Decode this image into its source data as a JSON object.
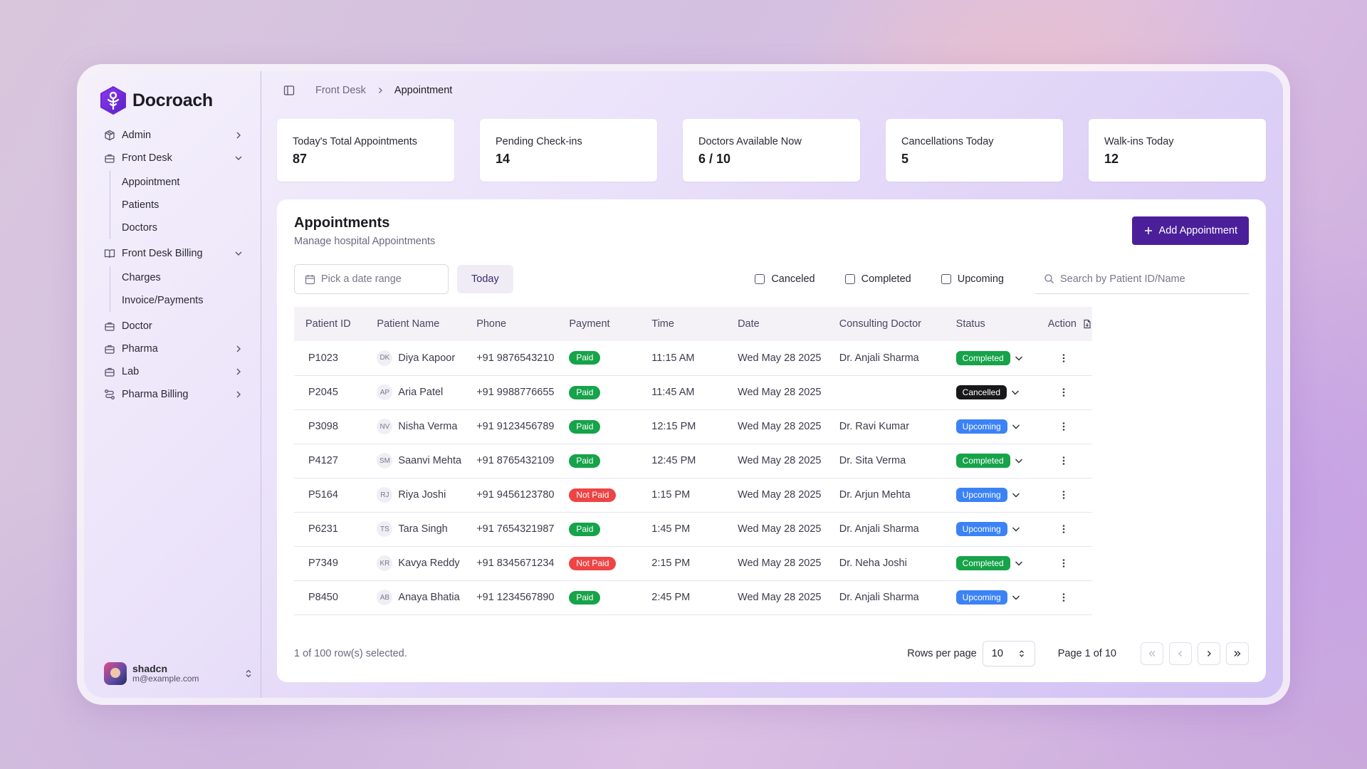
{
  "brand": {
    "name": "Docroach"
  },
  "sidebar": {
    "items": [
      {
        "label": "Admin",
        "icon": "package-icon"
      },
      {
        "label": "Front Desk",
        "icon": "briefcase-icon"
      },
      {
        "label": "Front Desk Billing",
        "icon": "book-open-icon"
      },
      {
        "label": "Doctor",
        "icon": "briefcase-icon"
      },
      {
        "label": "Pharma",
        "icon": "briefcase-icon"
      },
      {
        "label": "Lab",
        "icon": "briefcase-icon"
      },
      {
        "label": "Pharma Billing",
        "icon": "route-icon"
      }
    ],
    "front_desk_sub": [
      "Appointment",
      "Patients",
      "Doctors"
    ],
    "billing_sub": [
      "Charges",
      "Invoice/Payments"
    ]
  },
  "user": {
    "name": "shadcn",
    "email": "m@example.com"
  },
  "breadcrumb": {
    "parent": "Front Desk",
    "current": "Appointment"
  },
  "stats": [
    {
      "label": "Today's Total Appointments",
      "value": "87"
    },
    {
      "label": "Pending Check-ins",
      "value": "14"
    },
    {
      "label": "Doctors Available Now",
      "value": "6 / 10"
    },
    {
      "label": "Cancellations Today",
      "value": "5"
    },
    {
      "label": "Walk-ins Today",
      "value": "12"
    }
  ],
  "appointments": {
    "title": "Appointments",
    "subtitle": "Manage hospital Appointments",
    "add_label": "Add Appointment",
    "date_placeholder": "Pick a date range",
    "today_label": "Today",
    "filters": [
      "Canceled",
      "Completed",
      "Upcoming"
    ],
    "search_placeholder": "Search by Patient ID/Name",
    "columns": [
      "Patient ID",
      "Patient Name",
      "Phone",
      "Payment",
      "Time",
      "Date",
      "Consulting Doctor",
      "Status",
      "Action"
    ],
    "rows": [
      {
        "id": "P1023",
        "initials": "DK",
        "name": "Diya Kapoor",
        "phone": "+91 9876543210",
        "payment": "Paid",
        "time": "11:15 AM",
        "date": "Wed May 28 2025",
        "doctor": "Dr. Anjali Sharma",
        "status": "Completed"
      },
      {
        "id": "P2045",
        "initials": "AP",
        "name": "Aria Patel",
        "phone": "+91 9988776655",
        "payment": "Paid",
        "time": "11:45 AM",
        "date": "Wed May 28 2025",
        "doctor": "",
        "status": "Cancelled"
      },
      {
        "id": "P3098",
        "initials": "NV",
        "name": "Nisha Verma",
        "phone": "+91 9123456789",
        "payment": "Paid",
        "time": "12:15 PM",
        "date": "Wed May 28 2025",
        "doctor": "Dr. Ravi Kumar",
        "status": "Upcoming"
      },
      {
        "id": "P4127",
        "initials": "SM",
        "name": "Saanvi Mehta",
        "phone": "+91 8765432109",
        "payment": "Paid",
        "time": "12:45 PM",
        "date": "Wed May 28 2025",
        "doctor": "Dr. Sita Verma",
        "status": "Completed"
      },
      {
        "id": "P5164",
        "initials": "RJ",
        "name": "Riya Joshi",
        "phone": "+91 9456123780",
        "payment": "Not Paid",
        "time": "1:15 PM",
        "date": "Wed May 28 2025",
        "doctor": "Dr. Arjun Mehta",
        "status": "Upcoming"
      },
      {
        "id": "P6231",
        "initials": "TS",
        "name": "Tara Singh",
        "phone": "+91 7654321987",
        "payment": "Paid",
        "time": "1:45 PM",
        "date": "Wed May 28 2025",
        "doctor": "Dr. Anjali Sharma",
        "status": "Upcoming"
      },
      {
        "id": "P7349",
        "initials": "KR",
        "name": "Kavya Reddy",
        "phone": "+91 8345671234",
        "payment": "Not Paid",
        "time": "2:15 PM",
        "date": "Wed May 28 2025",
        "doctor": "Dr. Neha Joshi",
        "status": "Completed"
      },
      {
        "id": "P8450",
        "initials": "AB",
        "name": "Anaya Bhatia",
        "phone": "+91 1234567890",
        "payment": "Paid",
        "time": "2:45 PM",
        "date": "Wed May 28 2025",
        "doctor": "Dr. Anjali Sharma",
        "status": "Upcoming"
      }
    ],
    "selection_text": "1 of 100 row(s) selected.",
    "rows_per_page_label": "Rows per page",
    "rows_per_page": "10",
    "page_info": "Page 1 of 10"
  },
  "colors": {
    "accent": "#4b1f9a",
    "paid": "#16a34a",
    "not_paid": "#ef4444",
    "completed": "#16a34a",
    "upcoming": "#3b82f6",
    "cancelled": "#18181b"
  }
}
